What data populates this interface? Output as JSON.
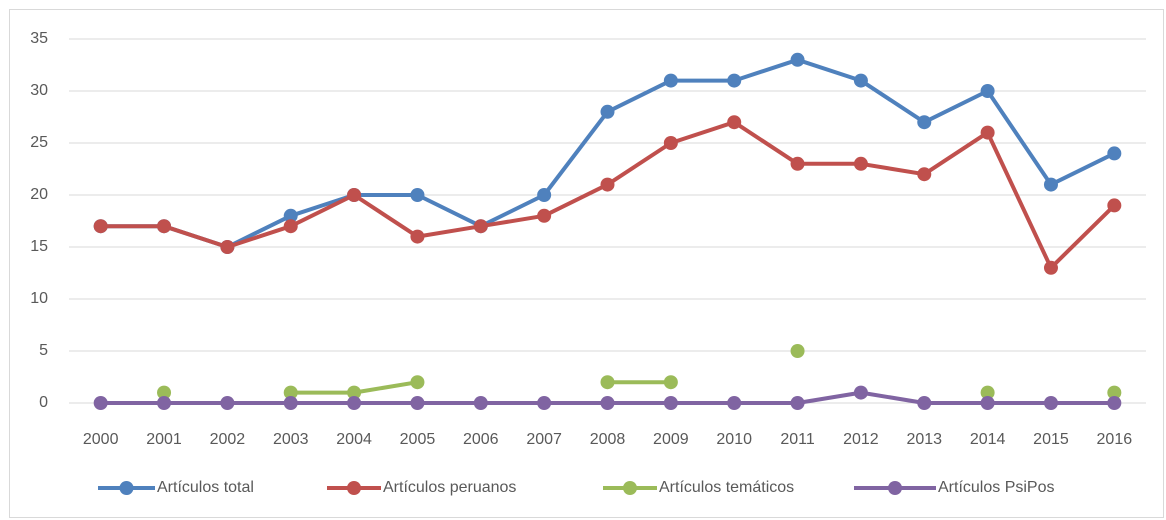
{
  "chart_data": {
    "type": "line",
    "categories": [
      "2000",
      "2001",
      "2002",
      "2003",
      "2004",
      "2005",
      "2006",
      "2007",
      "2008",
      "2009",
      "2010",
      "2011",
      "2012",
      "2013",
      "2014",
      "2015",
      "2016"
    ],
    "series": [
      {
        "name": "Artículos total",
        "color": "#4f81bd",
        "values": [
          17,
          17,
          15,
          18,
          20,
          20,
          17,
          20,
          28,
          31,
          31,
          33,
          31,
          27,
          30,
          21,
          24
        ]
      },
      {
        "name": "Artículos peruanos",
        "color": "#c0504d",
        "values": [
          17,
          17,
          15,
          17,
          20,
          16,
          17,
          18,
          21,
          25,
          27,
          23,
          23,
          22,
          26,
          13,
          19
        ]
      },
      {
        "name": "Artículos temáticos",
        "color": "#9bbb59",
        "values": [
          null,
          1,
          null,
          1,
          1,
          2,
          null,
          null,
          2,
          2,
          null,
          5,
          null,
          null,
          1,
          null,
          1
        ]
      },
      {
        "name": "Artículos PsiPos",
        "color": "#8064a2",
        "values": [
          0,
          0,
          0,
          0,
          0,
          0,
          0,
          0,
          0,
          0,
          0,
          0,
          1,
          0,
          0,
          0,
          0
        ]
      }
    ],
    "ylim": [
      0,
      35
    ],
    "yticks": [
      0,
      5,
      10,
      15,
      20,
      25,
      30,
      35
    ],
    "grid": true,
    "legend": "bottom"
  }
}
